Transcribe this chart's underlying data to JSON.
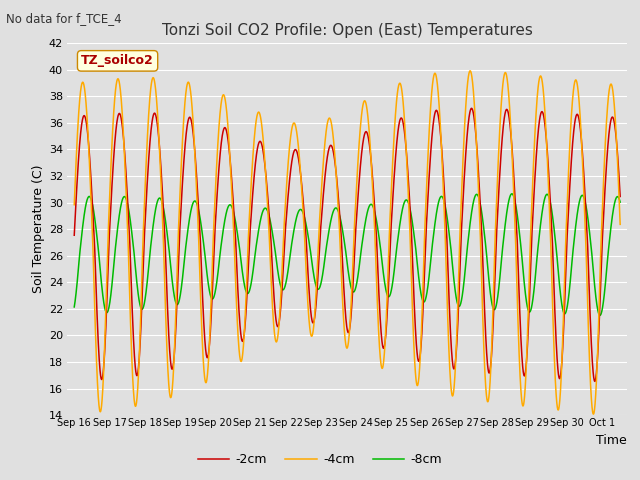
{
  "title": "Tonzi Soil CO2 Profile: Open (East) Temperatures",
  "subtitle": "No data for f_TCE_4",
  "ylabel": "Soil Temperature (C)",
  "xlabel": "Time",
  "legend_title": "TZ_soilco2",
  "legend_entries": [
    "-2cm",
    "-4cm",
    "-8cm"
  ],
  "color_2cm": "#cc0000",
  "color_4cm": "#ffaa00",
  "color_8cm": "#00bb00",
  "ylim": [
    14,
    42
  ],
  "yticks": [
    14,
    16,
    18,
    20,
    22,
    24,
    26,
    28,
    30,
    32,
    34,
    36,
    38,
    40,
    42
  ],
  "bg_color": "#e0e0e0",
  "grid_color": "#ffffff",
  "xtick_labels": [
    "Sep 16",
    "Sep 17",
    "Sep 18",
    "Sep 19",
    "Sep 20",
    "Sep 21",
    "Sep 22",
    "Sep 23",
    "Sep 24",
    "Sep 25",
    "Sep 26",
    "Sep 27",
    "Sep 28",
    "Sep 29",
    "Sep 30",
    "Oct 1"
  ]
}
